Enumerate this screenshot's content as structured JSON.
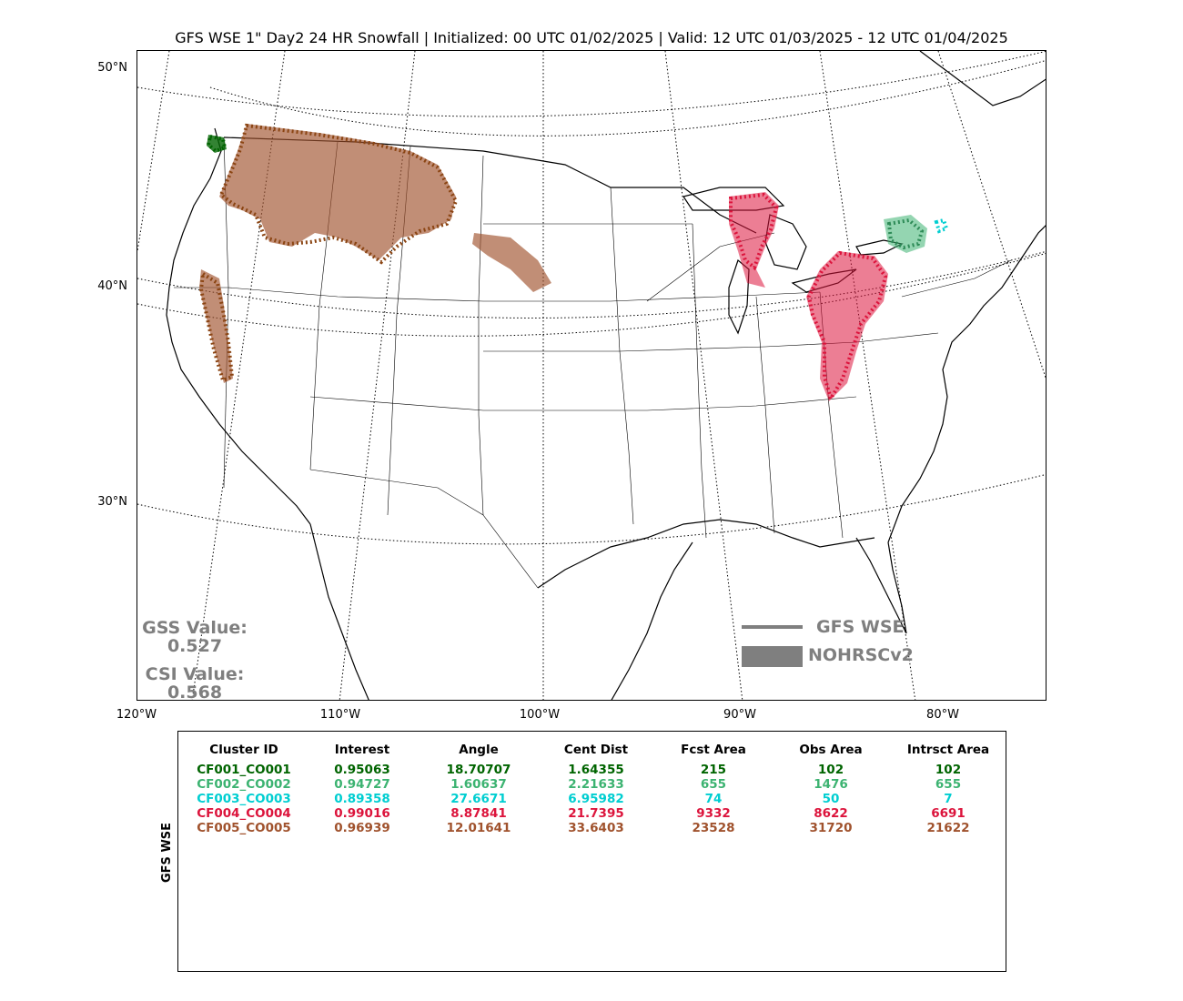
{
  "title": "GFS WSE 1\" Day2 24 HR Snowfall | Initialized: 00 UTC 01/02/2025 | Valid: 12 UTC 01/03/2025 - 12 UTC 01/04/2025",
  "map": {
    "lat_labels": [
      "50°N",
      "40°N",
      "30°N"
    ],
    "lon_labels": [
      "120°W",
      "110°W",
      "100°W",
      "90°W",
      "80°W"
    ]
  },
  "scores": {
    "gss_label": "GSS Value:",
    "gss_value": "0.527",
    "csi_label": "CSI Value:",
    "csi_value": "0.568"
  },
  "legend": {
    "line_label": "GFS WSE",
    "box_label": "NOHRSCv2",
    "color": "#7f7f7f"
  },
  "table": {
    "ylabel": "GFS WSE",
    "headers": [
      "Cluster ID",
      "Interest",
      "Angle",
      "Cent Dist",
      "Fcst Area",
      "Obs Area",
      "Intrsct Area"
    ],
    "rows": [
      {
        "color": "#006400",
        "cells": [
          "CF001_CO001",
          "0.95063",
          "18.70707",
          "1.64355",
          "215",
          "102",
          "102"
        ]
      },
      {
        "color": "#3cb371",
        "cells": [
          "CF002_CO002",
          "0.94727",
          "1.60637",
          "2.21633",
          "655",
          "1476",
          "655"
        ]
      },
      {
        "color": "#00ced1",
        "cells": [
          "CF003_CO003",
          "0.89358",
          "27.6671",
          "6.95982",
          "74",
          "50",
          "7"
        ]
      },
      {
        "color": "#dc143c",
        "cells": [
          "CF004_CO004",
          "0.99016",
          "8.87841",
          "21.7395",
          "9332",
          "8622",
          "6691"
        ]
      },
      {
        "color": "#a0522d",
        "cells": [
          "CF005_CO005",
          "0.96939",
          "12.01641",
          "33.6403",
          "23528",
          "31720",
          "21622"
        ]
      }
    ]
  }
}
